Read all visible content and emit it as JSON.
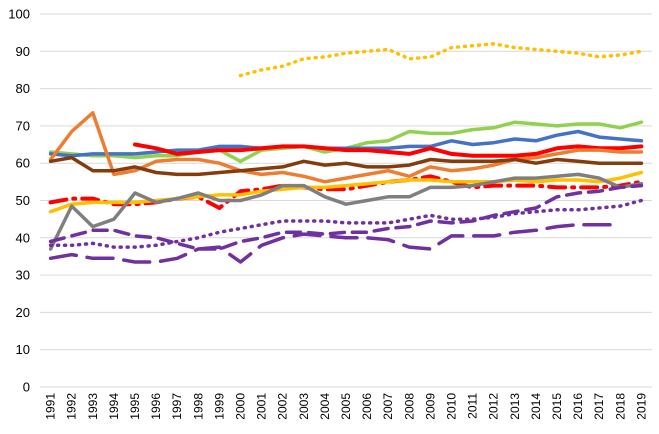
{
  "chart_data": {
    "type": "line",
    "title": "",
    "xlabel": "",
    "ylabel": "",
    "ylim": [
      0,
      100
    ],
    "yticks": [
      "0",
      "10",
      "20",
      "30",
      "40",
      "50",
      "60",
      "70",
      "80",
      "90",
      "100"
    ],
    "grid": true,
    "x": [
      "1991",
      "1992",
      "1993",
      "1994",
      "1995",
      "1996",
      "1997",
      "1998",
      "1999",
      "2000",
      "2001",
      "2002",
      "2003",
      "2004",
      "2005",
      "2006",
      "2007",
      "2008",
      "2009",
      "2010",
      "2011",
      "2012",
      "2013",
      "2014",
      "2015",
      "2016",
      "2017",
      "2018",
      "2019"
    ],
    "series": [
      {
        "color": "#ffc000",
        "dash": "dot",
        "width": 3.5,
        "values": [
          null,
          null,
          null,
          null,
          null,
          null,
          null,
          null,
          null,
          83.5,
          85,
          86,
          88,
          88.5,
          89.5,
          90,
          90.5,
          88,
          88.5,
          91,
          91.5,
          92,
          91,
          90.5,
          90,
          89.5,
          88.5,
          89,
          90
        ]
      },
      {
        "color": "#92d050",
        "dash": "solid",
        "width": 3.5,
        "values": [
          63,
          62.5,
          62,
          62,
          61.5,
          62,
          62,
          63,
          63.5,
          60.5,
          63.5,
          64,
          64.5,
          63,
          64,
          65.5,
          66,
          68.5,
          68,
          68,
          69,
          69.5,
          71,
          70.5,
          70,
          70.5,
          70.5,
          69.5,
          71
        ]
      },
      {
        "color": "#4472c4",
        "dash": "solid",
        "width": 3.5,
        "values": [
          62.5,
          62,
          62.5,
          62.5,
          62.5,
          63,
          63.5,
          63.5,
          64.5,
          64.5,
          64,
          64.5,
          64.5,
          64,
          64,
          64,
          64,
          64.5,
          64.5,
          66,
          65,
          65.5,
          66.5,
          66,
          67.5,
          68.5,
          67,
          66.5,
          66
        ]
      },
      {
        "color": "#ff0000",
        "dash": "solid",
        "width": 4,
        "values": [
          null,
          null,
          null,
          null,
          65,
          64,
          62.5,
          63,
          63.5,
          63.5,
          64,
          64.5,
          64.5,
          64,
          63.5,
          63.5,
          63,
          62.5,
          64,
          62.5,
          62,
          62,
          62,
          62.5,
          64,
          64.5,
          64,
          64,
          64.5
        ]
      },
      {
        "color": "#ed7d31",
        "dash": "solid",
        "width": 3.5,
        "values": [
          61,
          68.5,
          73.5,
          57,
          58,
          60.5,
          61,
          61,
          60,
          58,
          57,
          57.5,
          56.5,
          55,
          56,
          57,
          58,
          56.5,
          59,
          58,
          58.5,
          59.5,
          61,
          61.5,
          62.5,
          63.5,
          63.5,
          63,
          63
        ]
      },
      {
        "color": "#843c0c",
        "dash": "solid",
        "width": 3.5,
        "values": [
          60.5,
          61.5,
          58,
          58,
          59,
          57.5,
          57,
          57,
          57.5,
          58,
          58.5,
          59,
          60.5,
          59.5,
          60,
          59,
          59,
          59.5,
          61,
          60.5,
          60.5,
          60.5,
          61,
          60,
          61,
          60.5,
          60,
          60,
          60
        ]
      },
      {
        "color": "#ff0000",
        "dash": "dashdot",
        "width": 4,
        "values": [
          49.5,
          50.5,
          50.5,
          49,
          49,
          49.5,
          50.5,
          51,
          48,
          52.5,
          53,
          54,
          53.5,
          53,
          53,
          54,
          55,
          55.5,
          56.5,
          55,
          53.5,
          54,
          54,
          54,
          53.5,
          53.5,
          53.5,
          54,
          55
        ]
      },
      {
        "color": "#ffc000",
        "dash": "solid",
        "width": 3.5,
        "values": [
          47,
          49,
          49.5,
          49.5,
          49.5,
          50,
          50.5,
          51,
          51.5,
          51.5,
          52.5,
          53,
          53.5,
          53.5,
          54,
          54.5,
          55,
          55.5,
          55.5,
          55,
          55,
          55,
          55.5,
          55,
          55.5,
          55.5,
          55,
          56,
          57.5
        ]
      },
      {
        "color": "#7f7f7f",
        "dash": "solid",
        "width": 3.5,
        "values": [
          37,
          48.5,
          43,
          45,
          52,
          49.5,
          50.5,
          52,
          50,
          50,
          51.5,
          54,
          54,
          51,
          49,
          50,
          51,
          51,
          53.5,
          53.5,
          54,
          55,
          56,
          56,
          56.5,
          57,
          56,
          53.5,
          54.5
        ]
      },
      {
        "color": "#7030a0",
        "dash": "dot",
        "width": 3.5,
        "values": [
          38,
          38,
          38.5,
          37.5,
          37.5,
          38,
          39,
          40,
          41.5,
          42.5,
          43.5,
          44.5,
          44.5,
          44.5,
          44,
          44,
          44,
          45,
          46,
          45,
          45,
          45.5,
          46.5,
          47,
          47.5,
          47.5,
          48,
          48.5,
          50
        ]
      },
      {
        "color": "#7030a0",
        "dash": "dash",
        "width": 3.5,
        "values": [
          39,
          40.5,
          42,
          42,
          40.5,
          40,
          38.5,
          37,
          37,
          39,
          40,
          41.5,
          41.5,
          41,
          41.5,
          41.5,
          42.5,
          43,
          44.5,
          44,
          44.5,
          46,
          47,
          48,
          51,
          52,
          52.5,
          53.5,
          54
        ]
      },
      {
        "color": "#7030a0",
        "dash": "longdash",
        "width": 3.5,
        "values": [
          34.5,
          35.5,
          34.5,
          34.5,
          33.5,
          33.5,
          34.5,
          37,
          37.5,
          33.5,
          38,
          40,
          41,
          40.5,
          40,
          40,
          39.5,
          37.5,
          37,
          40.5,
          40.5,
          40.5,
          41.5,
          42,
          43,
          43.5,
          43.5,
          43.5,
          null
        ]
      }
    ]
  }
}
